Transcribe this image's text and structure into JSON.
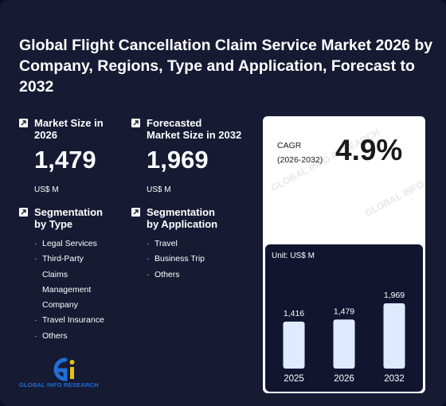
{
  "title": "Global Flight Cancellation Claim Service Market 2026 by Company, Regions, Type and Application, Forecast to 2032",
  "market_size": {
    "label_line1": "Market Size in",
    "label_line2": "2026",
    "value": "1,479",
    "unit": "US$ M"
  },
  "forecast_size": {
    "label_line1": "Forecasted",
    "label_line2": "Market Size in 2032",
    "value": "1,969",
    "unit": "US$ M"
  },
  "seg_type": {
    "label_line1": "Segmentation",
    "label_line2": "by Type",
    "items": [
      "Legal Services",
      "Third-Party Claims Management Company",
      "Travel Insurance",
      "Others"
    ]
  },
  "seg_app": {
    "label_line1": "Segmentation",
    "label_line2": "by Application",
    "items": [
      "Travel",
      "Business Trip",
      "Others"
    ]
  },
  "cagr": {
    "label_line1": "CAGR",
    "label_line2": "(2026-2032)",
    "value": "4.9%"
  },
  "logo": {
    "text": "GLOBAL INFO RESEARCH"
  },
  "watermark": "GLOBAL INFO RESEARCH",
  "chart_data": {
    "type": "bar",
    "unit_label": "Unit: US$ M",
    "categories": [
      "2025",
      "2026",
      "2032"
    ],
    "values": [
      1416,
      1479,
      1969
    ],
    "value_labels": [
      "1,416",
      "1,479",
      "1,969"
    ],
    "title": "",
    "xlabel": "",
    "ylabel": "",
    "ylim": [
      0,
      2000
    ],
    "grid": false,
    "bar_color": "#ddeaff"
  },
  "colors": {
    "background": "#171a33",
    "chart_bg": "#121530",
    "bar": "#ddeaff",
    "logo_blue": "#1f6fd8",
    "logo_yellow": "#e6c316"
  }
}
